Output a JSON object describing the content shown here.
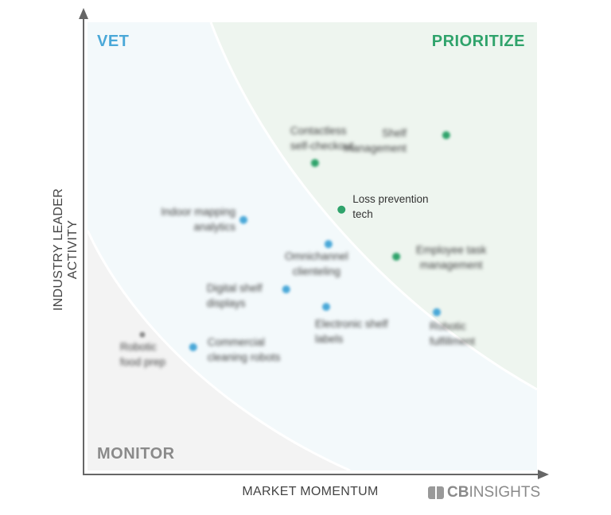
{
  "chart_data": {
    "type": "scatter",
    "title": "",
    "xlabel": "MARKET MOMENTUM",
    "ylabel": "INDUSTRY LEADER ACTIVITY",
    "xlim": [
      0,
      100
    ],
    "ylim": [
      0,
      100
    ],
    "grid": false,
    "quadrants": {
      "vet": "VET",
      "prioritize": "PRIORITIZE",
      "monitor": "MONITOR"
    },
    "colors": {
      "vet": "#4aa8d8",
      "prioritize": "#2fa36b",
      "monitor": "#8a8a8a",
      "vet_bg": "#f3f9fb",
      "prioritize_bg": "#eef5ef",
      "monitor_bg": "#f3f3f3"
    },
    "points": [
      {
        "label": "Contactless\nself-checkout",
        "x": 50.6,
        "y": 68.6,
        "zone": "prioritize",
        "highlighted": false
      },
      {
        "label": "Shelf\nmanagement",
        "x": 79.8,
        "y": 74.8,
        "zone": "prioritize",
        "highlighted": false
      },
      {
        "label": "Loss prevention\ntech",
        "x": 56.5,
        "y": 58.2,
        "zone": "prioritize",
        "highlighted": true
      },
      {
        "label": "Indoor mapping\nanalytics",
        "x": 34.7,
        "y": 55.9,
        "zone": "vet",
        "highlighted": false
      },
      {
        "label": "Omnichannel\nclienteling",
        "x": 53.6,
        "y": 50.5,
        "zone": "vet",
        "highlighted": false
      },
      {
        "label": "Employee task\nmanagement",
        "x": 68.7,
        "y": 47.7,
        "zone": "prioritize",
        "highlighted": false
      },
      {
        "label": "Digital shelf\ndisplays",
        "x": 44.2,
        "y": 40.4,
        "zone": "vet",
        "highlighted": false
      },
      {
        "label": "Electronic shelf\nlabels",
        "x": 53.1,
        "y": 36.5,
        "zone": "vet",
        "highlighted": false
      },
      {
        "label": "Robotic\nfulfillment",
        "x": 77.7,
        "y": 35.3,
        "zone": "vet",
        "highlighted": false
      },
      {
        "label": "Robotic\nfood prep",
        "x": 12.2,
        "y": 30.3,
        "zone": "monitor",
        "highlighted": false
      },
      {
        "label": "Commercial\ncleaning robots",
        "x": 23.5,
        "y": 27.5,
        "zone": "vet",
        "highlighted": false
      }
    ]
  },
  "branding": {
    "logo_bold": "CB",
    "logo_light": "INSIGHTS"
  }
}
